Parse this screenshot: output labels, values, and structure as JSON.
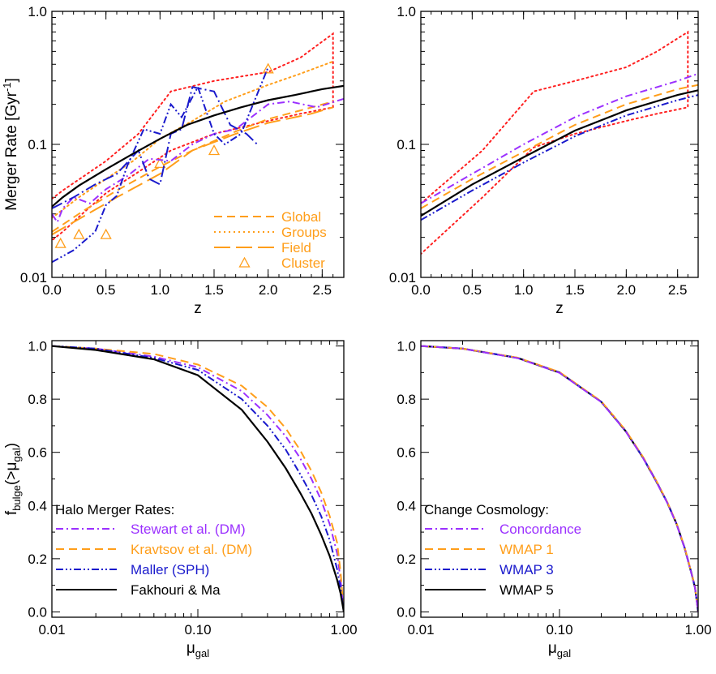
{
  "chart_data": [
    {
      "id": "top-left",
      "type": "line",
      "xlabel": "z",
      "ylabel": "Merger Rate  [Gyr",
      "ylabel_sup": "-1",
      "ylabel_close": "]",
      "xlim": [
        0.0,
        2.7
      ],
      "ylim": [
        0.01,
        1.0
      ],
      "yscale": "log",
      "xticks": [
        "0.0",
        "0.5",
        "1.0",
        "1.5",
        "2.0",
        "2.5"
      ],
      "yticks": [
        "0.01",
        "0.1",
        "1.0"
      ],
      "legend": {
        "position": "bottom-right",
        "entries": [
          {
            "label": "Global",
            "style": "dash-medium",
            "color": "#FF9E1A"
          },
          {
            "label": "Groups",
            "style": "dotted",
            "color": "#FF9E1A"
          },
          {
            "label": "Field",
            "style": "dash-long",
            "color": "#FF9E1A"
          },
          {
            "label": "Cluster",
            "style": "triangle-marker",
            "color": "#FF9E1A"
          }
        ]
      },
      "series": [
        {
          "style": "dotted",
          "color": "#FF2020",
          "x": [
            0.0,
            0.1,
            0.3,
            0.5,
            0.8,
            1.1,
            1.5,
            2.0,
            2.3,
            2.6,
            2.6,
            2.3,
            2.0,
            1.5,
            1.1,
            0.8,
            0.5,
            0.3,
            0.1,
            0.0
          ],
          "y": [
            0.039,
            0.045,
            0.058,
            0.075,
            0.12,
            0.25,
            0.3,
            0.35,
            0.45,
            0.68,
            0.19,
            0.17,
            0.15,
            0.12,
            0.09,
            0.062,
            0.043,
            0.031,
            0.022,
            0.019
          ]
        },
        {
          "style": "dash-medium",
          "color": "#FF9E1A",
          "x": [
            0.0,
            0.3,
            0.6,
            1.0,
            1.3,
            1.7,
            2.0,
            2.3,
            2.6
          ],
          "y": [
            0.022,
            0.032,
            0.045,
            0.068,
            0.09,
            0.125,
            0.155,
            0.18,
            0.21
          ]
        },
        {
          "style": "dotted",
          "color": "#FF9E1A",
          "x": [
            0.0,
            0.25,
            0.5,
            0.75,
            1.0,
            1.3,
            1.6,
            2.0,
            2.3,
            2.6
          ],
          "y": [
            0.028,
            0.04,
            0.055,
            0.075,
            0.11,
            0.15,
            0.21,
            0.28,
            0.34,
            0.42
          ]
        },
        {
          "style": "dash-long",
          "color": "#FF9E1A",
          "x": [
            0.0,
            0.3,
            0.6,
            1.0,
            1.3,
            1.7,
            2.0,
            2.4,
            2.6
          ],
          "y": [
            0.021,
            0.029,
            0.04,
            0.06,
            0.09,
            0.12,
            0.145,
            0.17,
            0.19
          ]
        },
        {
          "style": "triangle-marker",
          "color": "#FF9E1A",
          "x": [
            0.08,
            0.25,
            0.5,
            1.0,
            1.5,
            2.0
          ],
          "y": [
            0.018,
            0.021,
            0.021,
            0.072,
            0.09,
            0.37
          ]
        },
        {
          "style": "dash-dot",
          "color": "#9B30FF",
          "x": [
            0.0,
            0.05,
            0.1,
            0.2,
            0.35,
            0.5,
            0.7,
            0.9,
            1.1,
            1.3,
            1.5,
            1.7,
            2.0,
            2.2,
            2.45,
            2.7
          ],
          "y": [
            0.03,
            0.026,
            0.033,
            0.04,
            0.036,
            0.046,
            0.058,
            0.078,
            0.075,
            0.1,
            0.12,
            0.13,
            0.2,
            0.21,
            0.19,
            0.22
          ]
        },
        {
          "style": "dash-dot-dot",
          "color": "#1A1ACC",
          "x": [
            0.0,
            0.2,
            0.4,
            0.5,
            0.6,
            0.7,
            0.85,
            1.0,
            1.1,
            1.2,
            1.35,
            1.5,
            1.6,
            1.75,
            2.0
          ],
          "y": [
            0.013,
            0.016,
            0.022,
            0.035,
            0.041,
            0.07,
            0.13,
            0.12,
            0.2,
            0.16,
            0.27,
            0.12,
            0.1,
            0.12,
            0.38
          ]
        },
        {
          "style": "dash-dot-long",
          "color": "#1A1ACC",
          "x": [
            0.0,
            0.2,
            0.4,
            0.6,
            0.8,
            0.9,
            1.0,
            1.1,
            1.2,
            1.3,
            1.5,
            1.65,
            1.8,
            1.9
          ],
          "y": [
            0.033,
            0.04,
            0.05,
            0.06,
            0.09,
            0.055,
            0.05,
            0.12,
            0.13,
            0.27,
            0.25,
            0.14,
            0.12,
            0.1
          ]
        },
        {
          "style": "solid",
          "color": "#000000",
          "x": [
            0.0,
            0.1,
            0.25,
            0.5,
            0.75,
            1.0,
            1.25,
            1.5,
            1.75,
            2.0,
            2.25,
            2.5,
            2.7
          ],
          "y": [
            0.034,
            0.04,
            0.049,
            0.065,
            0.085,
            0.11,
            0.14,
            0.165,
            0.19,
            0.215,
            0.235,
            0.26,
            0.275
          ]
        }
      ]
    },
    {
      "id": "top-right",
      "type": "line",
      "xlabel": "z",
      "xlim": [
        0.0,
        2.7
      ],
      "ylim": [
        0.01,
        1.0
      ],
      "yscale": "log",
      "xticks": [
        "0.0",
        "0.5",
        "1.0",
        "1.5",
        "2.0",
        "2.5"
      ],
      "yticks": [
        "0.01",
        "0.1",
        "1.0"
      ],
      "series": [
        {
          "style": "dotted",
          "color": "#FF2020",
          "x": [
            0.0,
            0.6,
            1.1,
            1.5,
            2.0,
            2.3,
            2.6,
            2.6,
            2.3,
            2.0,
            1.5,
            1.1,
            0.6,
            0.0
          ],
          "y": [
            0.036,
            0.09,
            0.25,
            0.3,
            0.38,
            0.5,
            0.7,
            0.19,
            0.17,
            0.15,
            0.12,
            0.095,
            0.04,
            0.015
          ]
        },
        {
          "style": "dash-dot",
          "color": "#9B30FF",
          "x": [
            0.0,
            0.5,
            1.0,
            1.5,
            2.0,
            2.5,
            2.7
          ],
          "y": [
            0.036,
            0.06,
            0.1,
            0.16,
            0.23,
            0.3,
            0.34
          ]
        },
        {
          "style": "dash-medium",
          "color": "#FF9E1A",
          "x": [
            0.0,
            0.5,
            1.0,
            1.5,
            2.0,
            2.5,
            2.7
          ],
          "y": [
            0.033,
            0.055,
            0.088,
            0.14,
            0.2,
            0.26,
            0.28
          ]
        },
        {
          "style": "solid",
          "color": "#000000",
          "x": [
            0.0,
            0.5,
            1.0,
            1.5,
            2.0,
            2.5,
            2.7
          ],
          "y": [
            0.029,
            0.05,
            0.08,
            0.127,
            0.18,
            0.235,
            0.255
          ]
        },
        {
          "style": "dash-dot-dot",
          "color": "#1A1ACC",
          "x": [
            0.0,
            0.5,
            1.0,
            1.5,
            2.0,
            2.5,
            2.7
          ],
          "y": [
            0.027,
            0.045,
            0.073,
            0.115,
            0.165,
            0.215,
            0.235
          ]
        }
      ]
    },
    {
      "id": "bottom-left",
      "type": "line",
      "xlabel": "μ",
      "xlabel_sub": "gal",
      "ylabel": "f",
      "ylabel_sub1": "bulge",
      "ylabel_mid": "(>μ",
      "ylabel_sub2": "gal",
      "ylabel_close": ")",
      "xlim": [
        0.01,
        1.0
      ],
      "xscale": "log",
      "ylim": [
        -0.02,
        1.02
      ],
      "xticks": [
        "0.01",
        "0.10",
        "1.00"
      ],
      "yticks": [
        "0.0",
        "0.2",
        "0.4",
        "0.6",
        "0.8",
        "1.0"
      ],
      "legend": {
        "position": "bottom-left",
        "title": "Halo Merger Rates:",
        "entries": [
          {
            "label": "Stewart et al. (DM)",
            "style": "dash-dot",
            "color": "#9B30FF"
          },
          {
            "label": "Kravtsov et al. (DM)",
            "style": "dash-medium",
            "color": "#FF9E1A"
          },
          {
            "label": "Maller (SPH)",
            "style": "dash-dot-dot",
            "color": "#1A1ACC"
          },
          {
            "label": "Fakhouri & Ma",
            "style": "solid",
            "color": "#000000"
          }
        ]
      },
      "series": [
        {
          "name": "Stewart et al. (DM)",
          "style": "dash-dot",
          "color": "#9B30FF",
          "x": [
            0.01,
            0.02,
            0.05,
            0.1,
            0.2,
            0.3,
            0.4,
            0.5,
            0.6,
            0.7,
            0.8,
            0.9,
            0.95,
            1.0
          ],
          "y": [
            1.0,
            0.99,
            0.96,
            0.92,
            0.83,
            0.74,
            0.66,
            0.58,
            0.5,
            0.42,
            0.33,
            0.22,
            0.12,
            0.0
          ]
        },
        {
          "name": "Kravtsov et al. (DM)",
          "style": "dash-medium",
          "color": "#FF9E1A",
          "x": [
            0.01,
            0.02,
            0.05,
            0.1,
            0.2,
            0.3,
            0.4,
            0.5,
            0.6,
            0.7,
            0.8,
            0.9,
            0.95,
            1.0
          ],
          "y": [
            1.0,
            0.99,
            0.97,
            0.93,
            0.85,
            0.77,
            0.69,
            0.61,
            0.53,
            0.45,
            0.36,
            0.26,
            0.15,
            0.0
          ]
        },
        {
          "name": "Maller (SPH)",
          "style": "dash-dot-dot",
          "color": "#1A1ACC",
          "x": [
            0.01,
            0.02,
            0.05,
            0.1,
            0.2,
            0.3,
            0.4,
            0.5,
            0.6,
            0.7,
            0.8,
            0.9,
            0.95,
            1.0
          ],
          "y": [
            1.0,
            0.99,
            0.955,
            0.91,
            0.8,
            0.7,
            0.61,
            0.52,
            0.44,
            0.36,
            0.27,
            0.16,
            0.09,
            0.0
          ]
        },
        {
          "name": "Fakhouri & Ma",
          "style": "solid",
          "color": "#000000",
          "x": [
            0.01,
            0.02,
            0.05,
            0.1,
            0.2,
            0.3,
            0.4,
            0.5,
            0.6,
            0.7,
            0.8,
            0.9,
            0.95,
            1.0
          ],
          "y": [
            1.0,
            0.985,
            0.95,
            0.89,
            0.76,
            0.64,
            0.54,
            0.45,
            0.37,
            0.29,
            0.21,
            0.12,
            0.07,
            0.0
          ]
        }
      ]
    },
    {
      "id": "bottom-right",
      "type": "line",
      "xlabel": "μ",
      "xlabel_sub": "gal",
      "xlim": [
        0.01,
        1.0
      ],
      "xscale": "log",
      "ylim": [
        -0.02,
        1.02
      ],
      "xticks": [
        "0.01",
        "0.10",
        "1.00"
      ],
      "yticks": [
        "0.0",
        "0.2",
        "0.4",
        "0.6",
        "0.8",
        "1.0"
      ],
      "legend": {
        "position": "bottom-left",
        "title": "Change Cosmology:",
        "entries": [
          {
            "label": "Concordance",
            "style": "dash-dot",
            "color": "#9B30FF"
          },
          {
            "label": "WMAP 1",
            "style": "dash-medium",
            "color": "#FF9E1A"
          },
          {
            "label": "WMAP 3",
            "style": "dash-dot-dot",
            "color": "#1A1ACC"
          },
          {
            "label": "WMAP 5",
            "style": "solid",
            "color": "#000000"
          }
        ]
      },
      "series": [
        {
          "name": "WMAP 5",
          "style": "solid",
          "color": "#000000",
          "x": [
            0.01,
            0.02,
            0.05,
            0.1,
            0.2,
            0.3,
            0.4,
            0.5,
            0.6,
            0.7,
            0.8,
            0.9,
            0.95,
            1.0
          ],
          "y": [
            1.0,
            0.99,
            0.955,
            0.9,
            0.79,
            0.68,
            0.58,
            0.49,
            0.41,
            0.33,
            0.24,
            0.14,
            0.09,
            0.0
          ]
        },
        {
          "name": "WMAP 3",
          "style": "dash-dot-dot",
          "color": "#1A1ACC",
          "x": [
            0.01,
            0.02,
            0.05,
            0.1,
            0.2,
            0.3,
            0.4,
            0.5,
            0.6,
            0.7,
            0.8,
            0.9,
            0.95,
            1.0
          ],
          "y": [
            1.0,
            0.99,
            0.955,
            0.9,
            0.79,
            0.68,
            0.58,
            0.49,
            0.41,
            0.33,
            0.24,
            0.14,
            0.09,
            0.0
          ]
        },
        {
          "name": "WMAP 1",
          "style": "dash-medium",
          "color": "#FF9E1A",
          "x": [
            0.01,
            0.02,
            0.05,
            0.1,
            0.2,
            0.3,
            0.4,
            0.5,
            0.6,
            0.7,
            0.8,
            0.9,
            0.95,
            1.0
          ],
          "y": [
            1.0,
            0.99,
            0.956,
            0.902,
            0.792,
            0.683,
            0.583,
            0.493,
            0.412,
            0.332,
            0.242,
            0.142,
            0.092,
            0.0
          ]
        },
        {
          "name": "Concordance",
          "style": "dash-dot",
          "color": "#9B30FF",
          "x": [
            0.01,
            0.02,
            0.05,
            0.1,
            0.2,
            0.3,
            0.4,
            0.5,
            0.6,
            0.7,
            0.8,
            0.9,
            0.95,
            1.0
          ],
          "y": [
            1.0,
            0.99,
            0.954,
            0.899,
            0.789,
            0.679,
            0.579,
            0.489,
            0.409,
            0.329,
            0.239,
            0.139,
            0.089,
            0.0
          ]
        }
      ]
    }
  ]
}
